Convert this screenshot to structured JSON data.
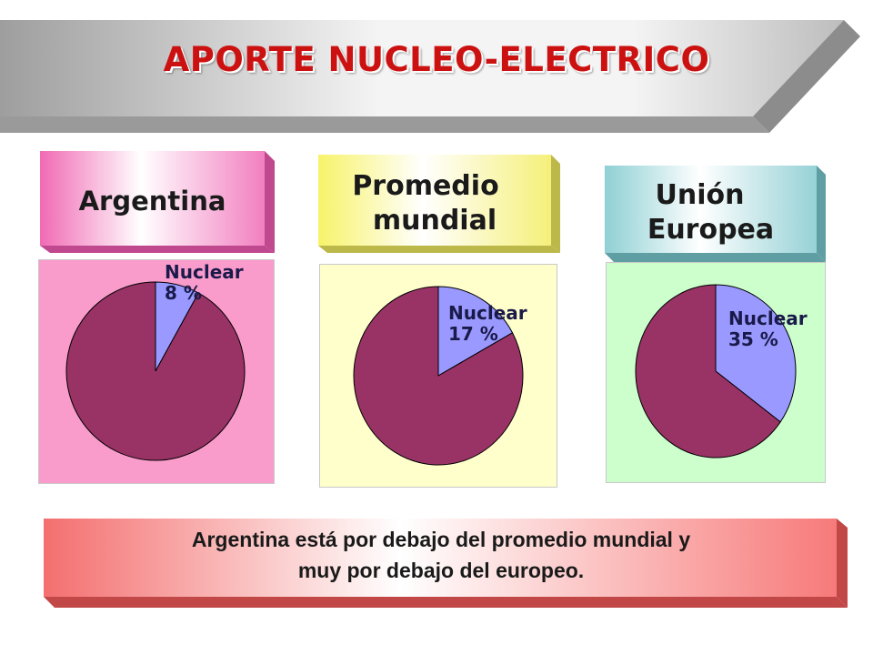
{
  "title": "APORTE NUCLEO-ELECTRICO",
  "colors": {
    "nuclear": "#9999ff",
    "other": "#993366",
    "title": "#cc1111"
  },
  "chart_data": [
    {
      "type": "pie",
      "title": "Argentina",
      "slices": [
        {
          "label": "Nuclear",
          "value": 8,
          "color": "#9999ff",
          "display": "8 %"
        },
        {
          "label": "",
          "value": 92,
          "color": "#993366"
        }
      ]
    },
    {
      "type": "pie",
      "title": "Promedio mundial",
      "slices": [
        {
          "label": "Nuclear",
          "value": 17,
          "color": "#9999ff",
          "display": "17 %"
        },
        {
          "label": "",
          "value": 83,
          "color": "#993366"
        }
      ]
    },
    {
      "type": "pie",
      "title": "Unión Europea",
      "slices": [
        {
          "label": "Nuclear",
          "value": 35,
          "color": "#9999ff",
          "display": "35 %"
        },
        {
          "label": "",
          "value": 65,
          "color": "#993366"
        }
      ]
    }
  ],
  "headers": {
    "argentina": {
      "line1": "Argentina"
    },
    "mundial": {
      "line1": "Promedio",
      "line2": "mundial"
    },
    "europa": {
      "line1": "Unión",
      "line2": "Europea"
    }
  },
  "labels": {
    "argentina": {
      "name": "Nuclear",
      "pct": "8 %"
    },
    "mundial": {
      "name": "Nuclear",
      "pct": "17 %"
    },
    "europa": {
      "name": "Nuclear",
      "pct": "35 %"
    }
  },
  "conclusion": {
    "line1": "Argentina está por debajo del promedio mundial y",
    "line2": "muy por debajo del europeo."
  }
}
